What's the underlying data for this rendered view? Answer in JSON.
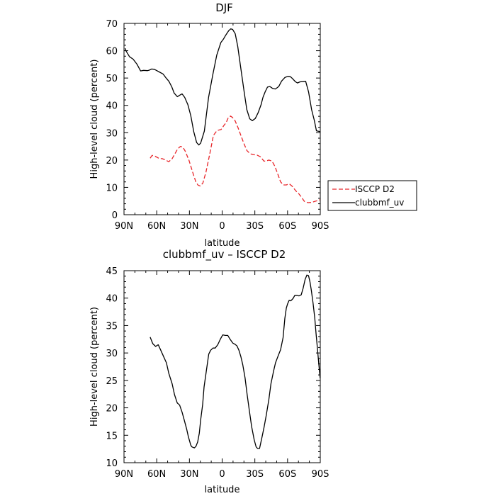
{
  "chart_data": [
    {
      "type": "line",
      "title": "DJF",
      "xlabel": "latitude",
      "ylabel": "High-level cloud (percent)",
      "xlim": [
        90,
        -90
      ],
      "ylim": [
        0,
        70
      ],
      "x_ticks": [
        {
          "value": 90,
          "label": "90N"
        },
        {
          "value": 60,
          "label": "60N"
        },
        {
          "value": 30,
          "label": "30N"
        },
        {
          "value": 0,
          "label": "0"
        },
        {
          "value": -30,
          "label": "30S"
        },
        {
          "value": -60,
          "label": "60S"
        },
        {
          "value": -90,
          "label": "90S"
        }
      ],
      "y_ticks": [
        0,
        10,
        20,
        30,
        40,
        50,
        60,
        70
      ],
      "grid": false,
      "legend": "right",
      "series": [
        {
          "name": "ISCCP D2",
          "color": "#e8262a",
          "dash": "dashed",
          "x": [
            66.0,
            64.2,
            61.5,
            57.4,
            55.0,
            51.8,
            49.0,
            46.0,
            43.3,
            40.6,
            38.2,
            36.0,
            33.8,
            30.4,
            27.2,
            24.1,
            22.1,
            20.1,
            17.7,
            14.8,
            11.4,
            8.0,
            4.7,
            0.9,
            -1.7,
            -3.7,
            -5.5,
            -7.7,
            -9.4,
            -11.8,
            -14.4,
            -16.8,
            -19.6,
            -22.7,
            -25.7,
            -28.4,
            -32.1,
            -35.0,
            -38.4,
            -40.1,
            -42.8,
            -45.8,
            -48.5,
            -51.1,
            -53.6,
            -56.2,
            -58.9,
            -61.6,
            -64.5,
            -67.6,
            -70.0,
            -72.6,
            -75.4,
            -78.7,
            -82.2,
            -85.2,
            -88.5,
            -89.9
          ],
          "y": [
            20.7,
            21.7,
            21.4,
            20.5,
            20.5,
            20.0,
            19.4,
            20.4,
            22.3,
            24.2,
            25.0,
            24.7,
            23.2,
            19.9,
            15.8,
            12.0,
            10.8,
            10.5,
            11.6,
            15.6,
            22.2,
            29.0,
            30.8,
            31.2,
            32.7,
            33.7,
            35.4,
            36.1,
            35.6,
            34.4,
            32.0,
            29.4,
            26.4,
            23.5,
            22.3,
            22.0,
            21.8,
            21.2,
            19.6,
            19.6,
            20.0,
            19.6,
            17.6,
            14.8,
            12.0,
            10.9,
            10.9,
            11.3,
            10.3,
            8.7,
            7.8,
            6.5,
            4.9,
            4.4,
            4.5,
            4.9,
            5.3,
            5.5
          ]
        },
        {
          "name": "clubbmf_uv",
          "color": "#000000",
          "dash": "solid",
          "x": [
            89.0,
            88.0,
            84.9,
            81.6,
            78.0,
            74.8,
            72.0,
            68.6,
            66.8,
            64.8,
            62.2,
            59.9,
            57.1,
            54.2,
            51.4,
            48.8,
            46.2,
            44.0,
            41.1,
            39.0,
            36.7,
            34.3,
            31.4,
            28.8,
            26.0,
            23.4,
            21.4,
            19.7,
            16.3,
            12.4,
            8.6,
            4.9,
            1.2,
            -1.1,
            -3.3,
            -6.0,
            -7.9,
            -9.6,
            -12.0,
            -14.3,
            -17.2,
            -20.2,
            -22.6,
            -25.3,
            -27.7,
            -30.4,
            -33.0,
            -35.7,
            -37.4,
            -39.5,
            -41.6,
            -43.8,
            -46.3,
            -48.8,
            -51.9,
            -54.5,
            -57.5,
            -60.2,
            -62.6,
            -64.5,
            -67.3,
            -69.1,
            -71.4,
            -74.0,
            -76.6,
            -79.3,
            -82.1,
            -84.5,
            -86.5,
            -89.9
          ],
          "y": [
            60.9,
            59.8,
            57.8,
            56.9,
            55.0,
            52.6,
            52.8,
            52.7,
            52.9,
            53.3,
            53.2,
            52.7,
            52.1,
            51.5,
            50.0,
            48.8,
            46.8,
            44.5,
            43.2,
            43.7,
            44.2,
            42.9,
            40.2,
            36.3,
            30.3,
            26.4,
            25.5,
            26.2,
            30.6,
            43.0,
            51.2,
            58.5,
            63.0,
            64.2,
            65.7,
            67.3,
            68.0,
            67.8,
            66.2,
            61.6,
            53.3,
            44.9,
            38.5,
            35.1,
            34.4,
            35.2,
            37.3,
            40.2,
            42.9,
            45.0,
            46.7,
            46.9,
            46.2,
            46.0,
            46.9,
            48.9,
            50.2,
            50.6,
            50.5,
            49.8,
            48.6,
            48.2,
            48.6,
            48.7,
            48.8,
            44.9,
            38.4,
            34.6,
            30.7,
            30.4
          ]
        }
      ]
    },
    {
      "type": "line",
      "title": "clubbmf_uv – ISCCP D2",
      "xlabel": "latitude",
      "ylabel": "High-level cloud (percent)",
      "xlim": [
        90,
        -90
      ],
      "ylim": [
        10,
        45
      ],
      "x_ticks": [
        {
          "value": 90,
          "label": "90N"
        },
        {
          "value": 60,
          "label": "60N"
        },
        {
          "value": 30,
          "label": "30N"
        },
        {
          "value": 0,
          "label": "0"
        },
        {
          "value": -30,
          "label": "30S"
        },
        {
          "value": -60,
          "label": "60S"
        },
        {
          "value": -90,
          "label": "90S"
        }
      ],
      "y_ticks": [
        10,
        15,
        20,
        25,
        30,
        35,
        40,
        45
      ],
      "grid": false,
      "series": [
        {
          "color": "#000000",
          "dash": "solid",
          "x": [
            66.0,
            63.6,
            61.0,
            58.6,
            56.3,
            53.8,
            51.1,
            48.9,
            45.9,
            43.7,
            41.2,
            39.0,
            36.7,
            34.5,
            32.5,
            30.9,
            29.6,
            28.8,
            27.9,
            26.8,
            25.4,
            24.0,
            22.4,
            20.9,
            19.7,
            17.9,
            16.6,
            14.3,
            12.3,
            10.5,
            8.4,
            6.4,
            4.0,
            1.4,
            -0.6,
            -2.9,
            -5.2,
            -7.3,
            -9.8,
            -11.7,
            -13.6,
            -15.4,
            -17.2,
            -19.0,
            -21.0,
            -22.9,
            -25.0,
            -27.0,
            -29.4,
            -31.1,
            -32.5,
            -34.3,
            -36.4,
            -38.5,
            -40.4,
            -42.8,
            -44.8,
            -47.2,
            -48.9,
            -51.2,
            -53.6,
            -55.9,
            -57.5,
            -58.9,
            -60.1,
            -61.5,
            -63.0,
            -64.9,
            -66.7,
            -68.6,
            -70.5,
            -72.5,
            -74.3,
            -76.1,
            -77.7,
            -79.2,
            -80.5,
            -81.8,
            -83.4,
            -84.9,
            -86.1,
            -87.4,
            -88.5,
            -89.9
          ],
          "y": [
            32.9,
            31.7,
            31.2,
            31.5,
            30.5,
            29.4,
            28.2,
            26.3,
            24.4,
            22.4,
            20.9,
            20.5,
            19.2,
            17.6,
            16.1,
            14.7,
            13.8,
            13.2,
            12.9,
            12.8,
            12.7,
            13.0,
            13.8,
            15.4,
            17.8,
            20.6,
            23.8,
            27.0,
            29.8,
            30.5,
            30.9,
            30.9,
            31.5,
            32.6,
            33.3,
            33.2,
            33.2,
            32.5,
            31.8,
            31.6,
            31.3,
            30.5,
            29.3,
            27.8,
            25.5,
            22.5,
            19.4,
            16.6,
            14.2,
            12.9,
            12.6,
            12.6,
            14.5,
            16.5,
            18.6,
            21.5,
            24.4,
            26.7,
            28.2,
            29.4,
            30.6,
            32.8,
            36.3,
            38.2,
            39.0,
            39.6,
            39.5,
            39.9,
            40.5,
            40.5,
            40.4,
            40.6,
            41.8,
            43.4,
            44.2,
            44.1,
            43.0,
            41.4,
            39.1,
            36.4,
            33.6,
            30.8,
            28.3,
            25.4
          ]
        }
      ]
    }
  ]
}
